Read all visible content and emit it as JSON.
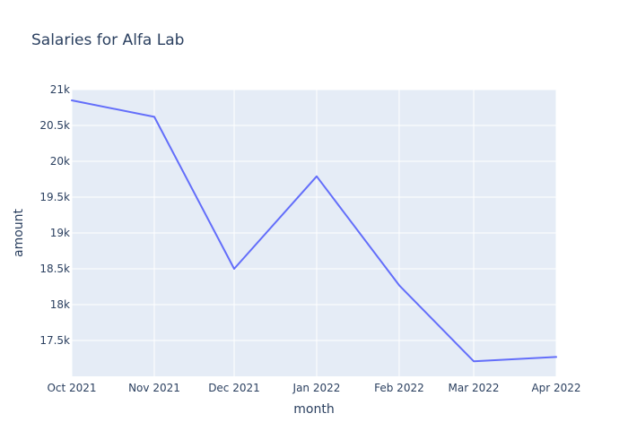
{
  "chart_data": {
    "type": "line",
    "title": "Salaries for Alfa Lab",
    "xlabel": "month",
    "ylabel": "amount",
    "x": [
      "Oct 2021",
      "Nov 2021",
      "Dec 2021",
      "Jan 2022",
      "Feb 2022",
      "Mar 2022",
      "Apr 2022"
    ],
    "x_dates": [
      "2021-10-01",
      "2021-11-01",
      "2021-12-01",
      "2022-01-01",
      "2022-02-01",
      "2022-03-01",
      "2022-04-01"
    ],
    "series": [
      {
        "values": [
          20850,
          20620,
          18500,
          19790,
          18270,
          17210,
          17270
        ]
      }
    ],
    "ylim": [
      17000,
      21000
    ],
    "y_ticks": [
      17500,
      18000,
      18500,
      19000,
      19500,
      20000,
      20500,
      21000
    ],
    "y_tick_labels": [
      "17.5k",
      "18k",
      "18.5k",
      "19k",
      "19.5k",
      "20k",
      "20.5k",
      "21k"
    ],
    "grid": true,
    "colors": {
      "plot_bg": "#e5ecf6",
      "grid": "#ffffff",
      "line": "#636efa",
      "text": "#2a3f5f"
    }
  }
}
